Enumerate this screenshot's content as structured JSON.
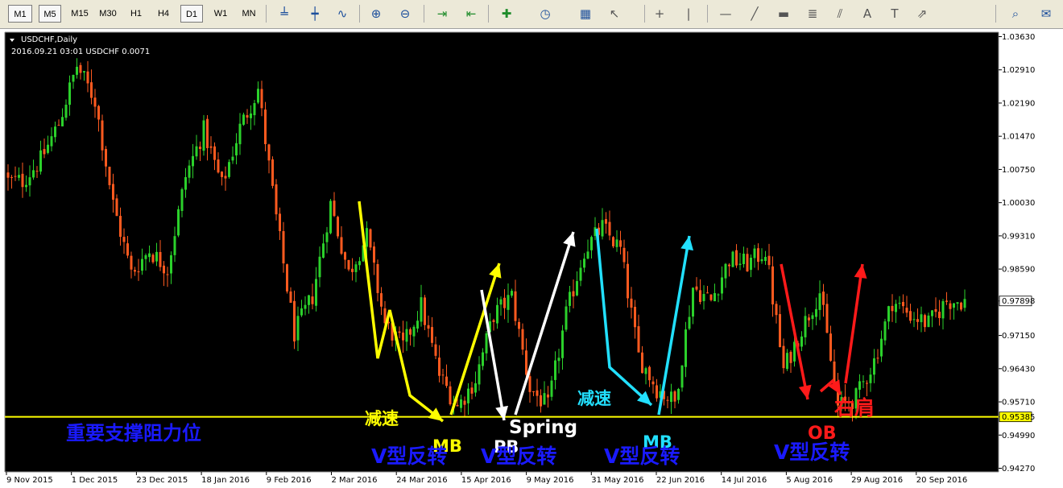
{
  "toolbar": {
    "timeframes": [
      "M1",
      "M5",
      "M15",
      "M30",
      "H1",
      "H4",
      "D1",
      "W1",
      "MN"
    ],
    "active_timeframes": [
      "M1",
      "M5",
      "D1"
    ],
    "icons": [
      "bar-chart-icon",
      "candlestick-icon",
      "line-chart-icon",
      "zoom-in-icon",
      "zoom-out-icon",
      "auto-scroll-icon",
      "chart-shift-icon",
      "indicators-icon",
      "periods-icon",
      "templates-icon",
      "cursor-icon",
      "crosshair-icon",
      "vertical-line-icon",
      "horizontal-line-icon",
      "trendline-icon",
      "rectangle-icon",
      "fibonacci-icon",
      "channel-icon",
      "text-icon",
      "text-label-icon",
      "arrows-icon",
      "search-icon",
      "chat-icon"
    ]
  },
  "chart_info": {
    "symbol_line": "USDCHF,Daily",
    "info_line": "2016.09.21 03:01 USDCHF 0.0071"
  },
  "colors": {
    "background": "#000000",
    "bull": "#2bd12b",
    "bear": "#ff5a1f",
    "support": "#ffff00",
    "annot_yellow": "#ffff00",
    "annot_white": "#ffffff",
    "annot_cyan": "#22e0ff",
    "annot_red": "#ff1a1a",
    "annot_blue": "#1a1aff"
  },
  "chart_data": {
    "type": "candlestick",
    "ylim": [
      0.9427,
      1.0363
    ],
    "y_ticks": [
      "1.03630",
      "1.02910",
      "1.02190",
      "1.01470",
      "1.00750",
      "1.00030",
      "0.99310",
      "0.98590",
      "0.97898",
      "0.97150",
      "0.96430",
      "0.95710",
      "0.95385",
      "0.94990",
      "0.94270"
    ],
    "current_price": "0.97898",
    "support_price": "0.95385",
    "x_ticks": [
      "9 Nov 2015",
      "1 Dec 2015",
      "23 Dec 2015",
      "18 Jan 2016",
      "9 Feb 2016",
      "2 Mar 2016",
      "24 Mar 2016",
      "15 Apr 2016",
      "9 May 2016",
      "31 May 2016",
      "22 Jun 2016",
      "14 Jul 2016",
      "5 Aug 2016",
      "29 Aug 2016",
      "20 Sep 2016"
    ],
    "closes_by_tick": [
      1.005,
      1.005,
      1.0095,
      1.0175,
      1.03,
      1.0225,
      1.0,
      0.985,
      0.99,
      0.986,
      1.006,
      1.016,
      1.004,
      1.0165,
      1.025,
      0.997,
      0.972,
      0.98,
      1.0,
      0.985,
      0.993,
      0.974,
      0.969,
      0.978,
      0.963,
      0.956,
      0.962,
      0.976,
      0.98,
      0.96,
      0.956,
      0.976,
      0.99,
      0.995,
      0.99,
      0.967,
      0.96,
      0.957,
      0.982,
      0.979,
      0.988,
      0.987,
      0.99,
      0.964,
      0.973,
      0.981,
      0.956,
      0.958,
      0.966,
      0.979,
      0.976,
      0.974,
      0.979,
      0.979
    ],
    "annotations": [
      {
        "text": "重要支撑阻力位",
        "color": "blue"
      },
      {
        "text": "减速",
        "color": "yellow"
      },
      {
        "text": "MB",
        "color": "yellow"
      },
      {
        "text": "V型反转",
        "color": "blue"
      },
      {
        "text": "PB",
        "color": "white"
      },
      {
        "text": "V型反转",
        "color": "blue"
      },
      {
        "text": "Spring",
        "color": "white"
      },
      {
        "text": "减速",
        "color": "cyan"
      },
      {
        "text": "MB",
        "color": "cyan"
      },
      {
        "text": "V型反转",
        "color": "blue"
      },
      {
        "text": "OB",
        "color": "red"
      },
      {
        "text": "右肩",
        "color": "red"
      },
      {
        "text": "V型反转",
        "color": "blue"
      }
    ]
  }
}
